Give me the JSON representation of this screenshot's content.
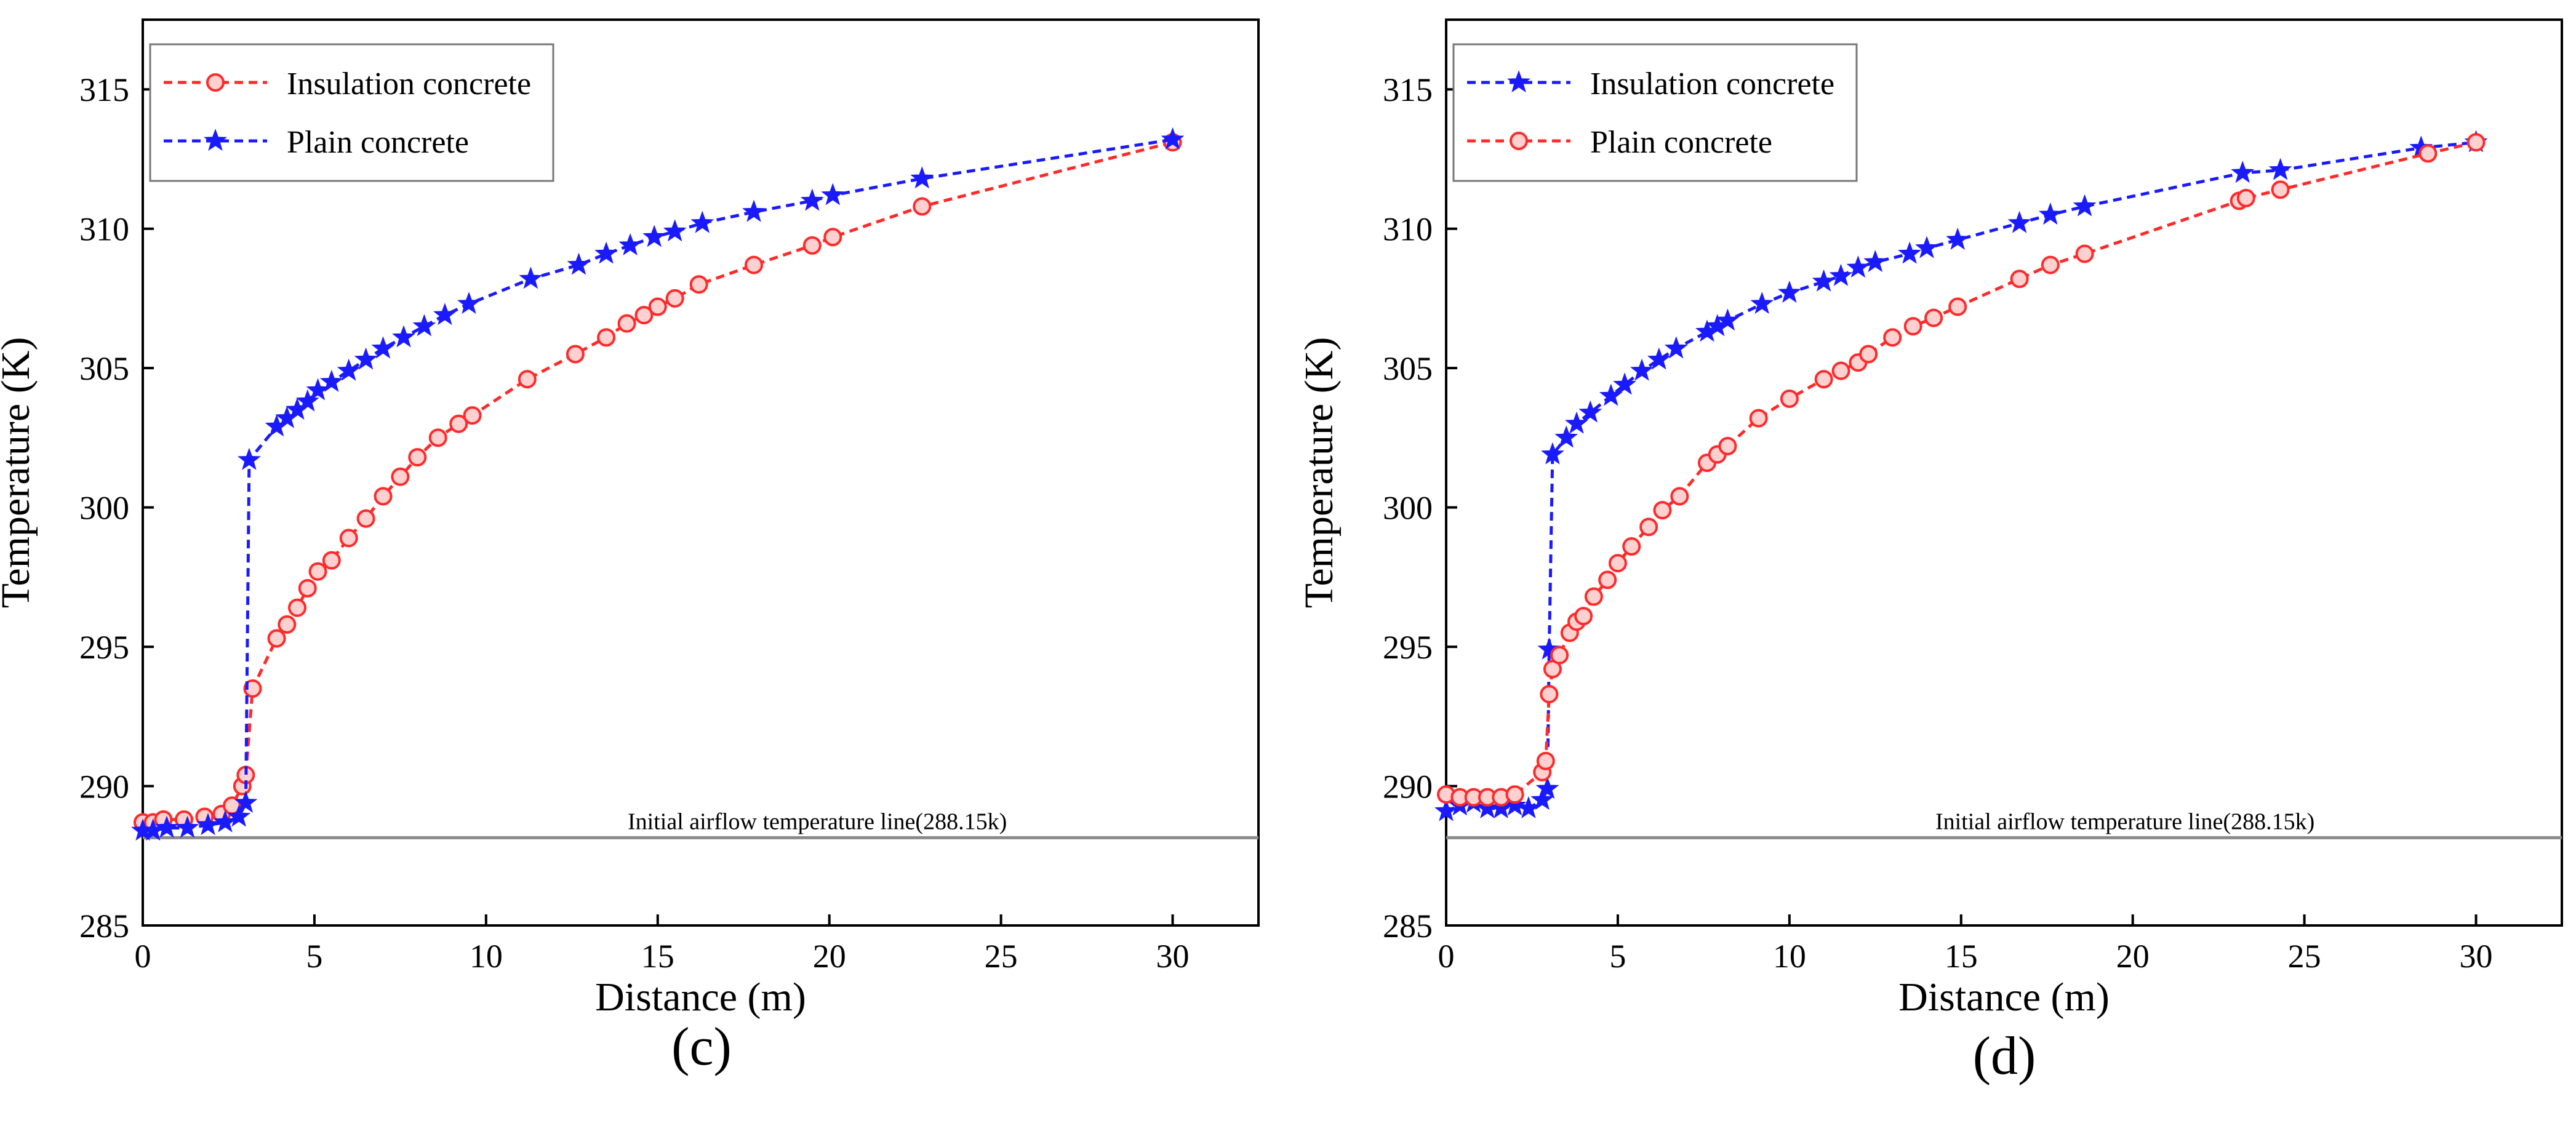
{
  "colors": {
    "red": "#ff2a2a",
    "blue": "#1a1aff",
    "axis": "#000000",
    "ref_line": "#8a8a8a"
  },
  "chart_data": [
    {
      "type": "line",
      "panel_label": "(c)",
      "xlabel": "Distance (m)",
      "ylabel": "Temperature (K)",
      "xlim": [
        0,
        32.5
      ],
      "ylim": [
        285,
        317.5
      ],
      "xticks": [
        0,
        5,
        10,
        15,
        20,
        25,
        30
      ],
      "yticks": [
        285,
        290,
        295,
        300,
        305,
        310,
        315
      ],
      "legend_position": "top-left",
      "reference_line": {
        "y": 288.15,
        "label": "Initial airflow temperature line(288.15k)"
      },
      "series": [
        {
          "name": "Insulation concrete",
          "color": "red",
          "marker": "circle",
          "x": [
            0,
            0.3,
            0.6,
            1.2,
            1.8,
            2.3,
            2.6,
            2.9,
            3.0,
            3.2,
            3.9,
            4.2,
            4.5,
            4.8,
            5.1,
            5.5,
            6.0,
            6.5,
            7.0,
            7.5,
            8.0,
            8.6,
            9.2,
            9.6,
            11.2,
            12.6,
            13.5,
            14.1,
            14.6,
            15.0,
            15.5,
            16.2,
            17.8,
            19.5,
            20.1,
            22.7,
            30.0
          ],
          "y": [
            288.7,
            288.7,
            288.8,
            288.8,
            288.9,
            289.0,
            289.3,
            290.0,
            290.4,
            293.5,
            295.3,
            295.8,
            296.4,
            297.1,
            297.7,
            298.1,
            298.9,
            299.6,
            300.4,
            301.1,
            301.8,
            302.5,
            303.0,
            303.3,
            304.6,
            305.5,
            306.1,
            306.6,
            306.9,
            307.2,
            307.5,
            308.0,
            308.7,
            309.4,
            309.7,
            310.8,
            313.1
          ]
        },
        {
          "name": "Plain concrete",
          "color": "blue",
          "marker": "star",
          "x": [
            0,
            0.3,
            0.7,
            1.3,
            1.9,
            2.4,
            2.8,
            3.0,
            3.1,
            3.9,
            4.2,
            4.5,
            4.8,
            5.1,
            5.5,
            6.0,
            6.5,
            7.0,
            7.6,
            8.2,
            8.8,
            9.5,
            11.3,
            12.7,
            13.5,
            14.2,
            14.9,
            15.5,
            16.3,
            17.8,
            19.5,
            20.1,
            22.7,
            30.0
          ],
          "y": [
            288.4,
            288.4,
            288.5,
            288.5,
            288.6,
            288.7,
            288.9,
            289.4,
            301.7,
            302.9,
            303.2,
            303.5,
            303.8,
            304.2,
            304.5,
            304.9,
            305.3,
            305.7,
            306.1,
            306.5,
            306.9,
            307.3,
            308.2,
            308.7,
            309.1,
            309.4,
            309.7,
            309.9,
            310.2,
            310.6,
            311.0,
            311.2,
            311.8,
            313.2
          ]
        }
      ]
    },
    {
      "type": "line",
      "panel_label": "(d)",
      "xlabel": "Distance (m)",
      "ylabel": "Temperature (K)",
      "xlim": [
        0,
        32.5
      ],
      "ylim": [
        285,
        317.5
      ],
      "xticks": [
        0,
        5,
        10,
        15,
        20,
        25,
        30
      ],
      "yticks": [
        285,
        290,
        295,
        300,
        305,
        310,
        315
      ],
      "legend_position": "top-left",
      "reference_line": {
        "y": 288.15,
        "label": "Initial airflow temperature line(288.15k)"
      },
      "series": [
        {
          "name": "Insulation concrete",
          "color": "blue",
          "marker": "star",
          "x": [
            0,
            0.4,
            0.8,
            1.2,
            1.6,
            2.0,
            2.4,
            2.8,
            2.95,
            3.0,
            3.1,
            3.5,
            3.8,
            4.2,
            4.8,
            5.2,
            5.7,
            6.2,
            6.7,
            7.6,
            7.9,
            8.2,
            9.2,
            10.0,
            11.0,
            11.5,
            12.0,
            12.5,
            13.5,
            14.0,
            14.9,
            16.7,
            17.6,
            18.6,
            23.2,
            24.3,
            28.4,
            30.0
          ],
          "y": [
            289.1,
            289.3,
            289.4,
            289.2,
            289.2,
            289.3,
            289.2,
            289.5,
            289.9,
            294.9,
            301.9,
            302.5,
            303.0,
            303.4,
            304.0,
            304.4,
            304.9,
            305.3,
            305.7,
            306.3,
            306.5,
            306.7,
            307.3,
            307.7,
            308.1,
            308.3,
            308.6,
            308.8,
            309.1,
            309.3,
            309.6,
            310.2,
            310.5,
            310.8,
            312.0,
            312.1,
            312.9,
            313.1
          ]
        },
        {
          "name": "Plain concrete",
          "color": "red",
          "marker": "circle",
          "x": [
            0,
            0.4,
            0.8,
            1.2,
            1.6,
            2.0,
            2.8,
            2.9,
            3.0,
            3.1,
            3.3,
            3.6,
            3.8,
            4.0,
            4.3,
            4.7,
            5.0,
            5.4,
            5.9,
            6.3,
            6.8,
            7.6,
            7.9,
            8.2,
            9.1,
            10.0,
            11.0,
            11.5,
            12.0,
            12.3,
            13.0,
            13.6,
            14.2,
            14.9,
            16.7,
            17.6,
            18.6,
            23.1,
            23.3,
            24.3,
            28.6,
            30.0
          ],
          "y": [
            289.7,
            289.6,
            289.6,
            289.6,
            289.6,
            289.7,
            290.5,
            290.9,
            293.3,
            294.2,
            294.7,
            295.5,
            295.9,
            296.1,
            296.8,
            297.4,
            298.0,
            298.6,
            299.3,
            299.9,
            300.4,
            301.6,
            301.9,
            302.2,
            303.2,
            303.9,
            304.6,
            304.9,
            305.2,
            305.5,
            306.1,
            306.5,
            306.8,
            307.2,
            308.2,
            308.7,
            309.1,
            311.0,
            311.1,
            311.4,
            312.7,
            313.1
          ]
        }
      ]
    }
  ]
}
